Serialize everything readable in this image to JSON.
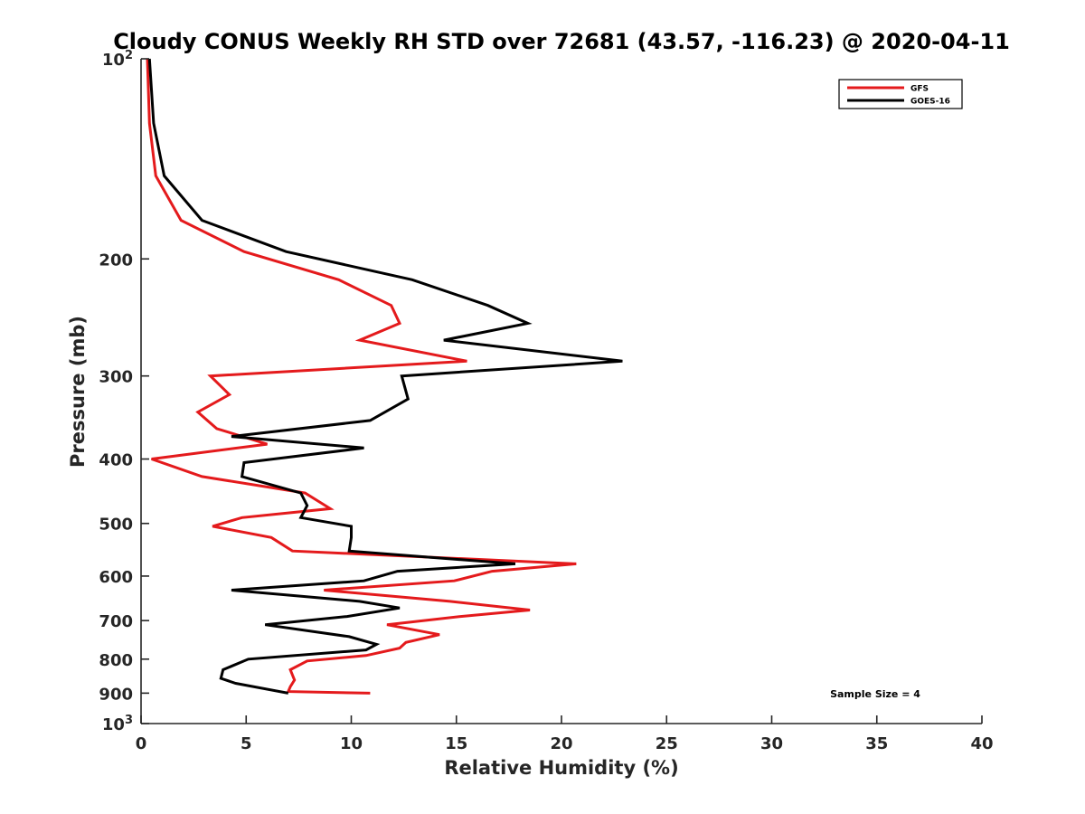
{
  "chart_data": {
    "type": "line",
    "title": "Cloudy CONUS Weekly RH STD over 72681 (43.57, -116.23) @ 2020-04-11",
    "xlabel": "Relative Humidity (%)",
    "ylabel": "Pressure (mb)",
    "xlim": [
      0,
      40
    ],
    "ylim": [
      100,
      1000
    ],
    "y_scale": "log",
    "y_reversed": true,
    "x_ticks": [
      0,
      5,
      10,
      15,
      20,
      25,
      30,
      35,
      40
    ],
    "x_tick_labels": [
      "0",
      "5",
      "10",
      "15",
      "20",
      "25",
      "30",
      "35",
      "40"
    ],
    "y_ticks": [
      100,
      200,
      300,
      400,
      500,
      600,
      700,
      800,
      900,
      1000
    ],
    "y_tick_labels": [
      {
        "base": "10",
        "exp": "2"
      },
      {
        "base": "200",
        "exp": ""
      },
      {
        "base": "300",
        "exp": ""
      },
      {
        "base": "400",
        "exp": ""
      },
      {
        "base": "500",
        "exp": ""
      },
      {
        "base": "600",
        "exp": ""
      },
      {
        "base": "700",
        "exp": ""
      },
      {
        "base": "800",
        "exp": ""
      },
      {
        "base": "900",
        "exp": ""
      },
      {
        "base": "10",
        "exp": "3"
      }
    ],
    "grid": false,
    "legend_position": "top-right",
    "annotation": "Sample Size = 4",
    "series": [
      {
        "name": "GFS",
        "color": "#e41a1c",
        "points": [
          [
            0.3,
            100
          ],
          [
            0.4,
            125
          ],
          [
            0.7,
            150
          ],
          [
            1.9,
            175
          ],
          [
            4.9,
            195
          ],
          [
            9.4,
            215
          ],
          [
            11.9,
            235
          ],
          [
            12.3,
            250
          ],
          [
            10.4,
            265
          ],
          [
            15.5,
            285
          ],
          [
            3.3,
            300
          ],
          [
            4.2,
            320
          ],
          [
            2.7,
            340
          ],
          [
            3.6,
            360
          ],
          [
            6.0,
            380
          ],
          [
            0.5,
            400
          ],
          [
            2.9,
            425
          ],
          [
            7.8,
            450
          ],
          [
            9.0,
            475
          ],
          [
            4.8,
            490
          ],
          [
            3.4,
            505
          ],
          [
            6.2,
            525
          ],
          [
            7.2,
            550
          ],
          [
            20.7,
            575
          ],
          [
            16.7,
            590
          ],
          [
            14.9,
            610
          ],
          [
            8.7,
            630
          ],
          [
            14.7,
            655
          ],
          [
            18.5,
            675
          ],
          [
            15.2,
            690
          ],
          [
            11.7,
            710
          ],
          [
            14.2,
            735
          ],
          [
            12.6,
            755
          ],
          [
            12.3,
            770
          ],
          [
            10.7,
            790
          ],
          [
            7.9,
            805
          ],
          [
            7.1,
            830
          ],
          [
            7.3,
            860
          ],
          [
            7.1,
            880
          ],
          [
            7.0,
            895
          ],
          [
            10.9,
            900
          ]
        ]
      },
      {
        "name": "GOES-16",
        "color": "#000000",
        "points": [
          [
            0.4,
            100
          ],
          [
            0.6,
            125
          ],
          [
            1.1,
            150
          ],
          [
            2.9,
            175
          ],
          [
            6.9,
            195
          ],
          [
            12.9,
            215
          ],
          [
            16.5,
            235
          ],
          [
            18.4,
            250
          ],
          [
            14.4,
            265
          ],
          [
            22.9,
            285
          ],
          [
            12.4,
            300
          ],
          [
            12.7,
            325
          ],
          [
            10.9,
            350
          ],
          [
            4.3,
            370
          ],
          [
            10.6,
            385
          ],
          [
            4.9,
            405
          ],
          [
            4.8,
            425
          ],
          [
            7.6,
            450
          ],
          [
            7.9,
            470
          ],
          [
            7.6,
            490
          ],
          [
            10.0,
            505
          ],
          [
            10.0,
            525
          ],
          [
            9.9,
            550
          ],
          [
            17.8,
            575
          ],
          [
            12.2,
            590
          ],
          [
            10.6,
            610
          ],
          [
            4.3,
            630
          ],
          [
            10.4,
            655
          ],
          [
            12.3,
            670
          ],
          [
            9.8,
            690
          ],
          [
            5.9,
            710
          ],
          [
            9.9,
            740
          ],
          [
            11.2,
            760
          ],
          [
            10.7,
            775
          ],
          [
            5.1,
            800
          ],
          [
            3.9,
            830
          ],
          [
            3.8,
            855
          ],
          [
            4.5,
            870
          ],
          [
            7.0,
            900
          ]
        ]
      }
    ]
  }
}
